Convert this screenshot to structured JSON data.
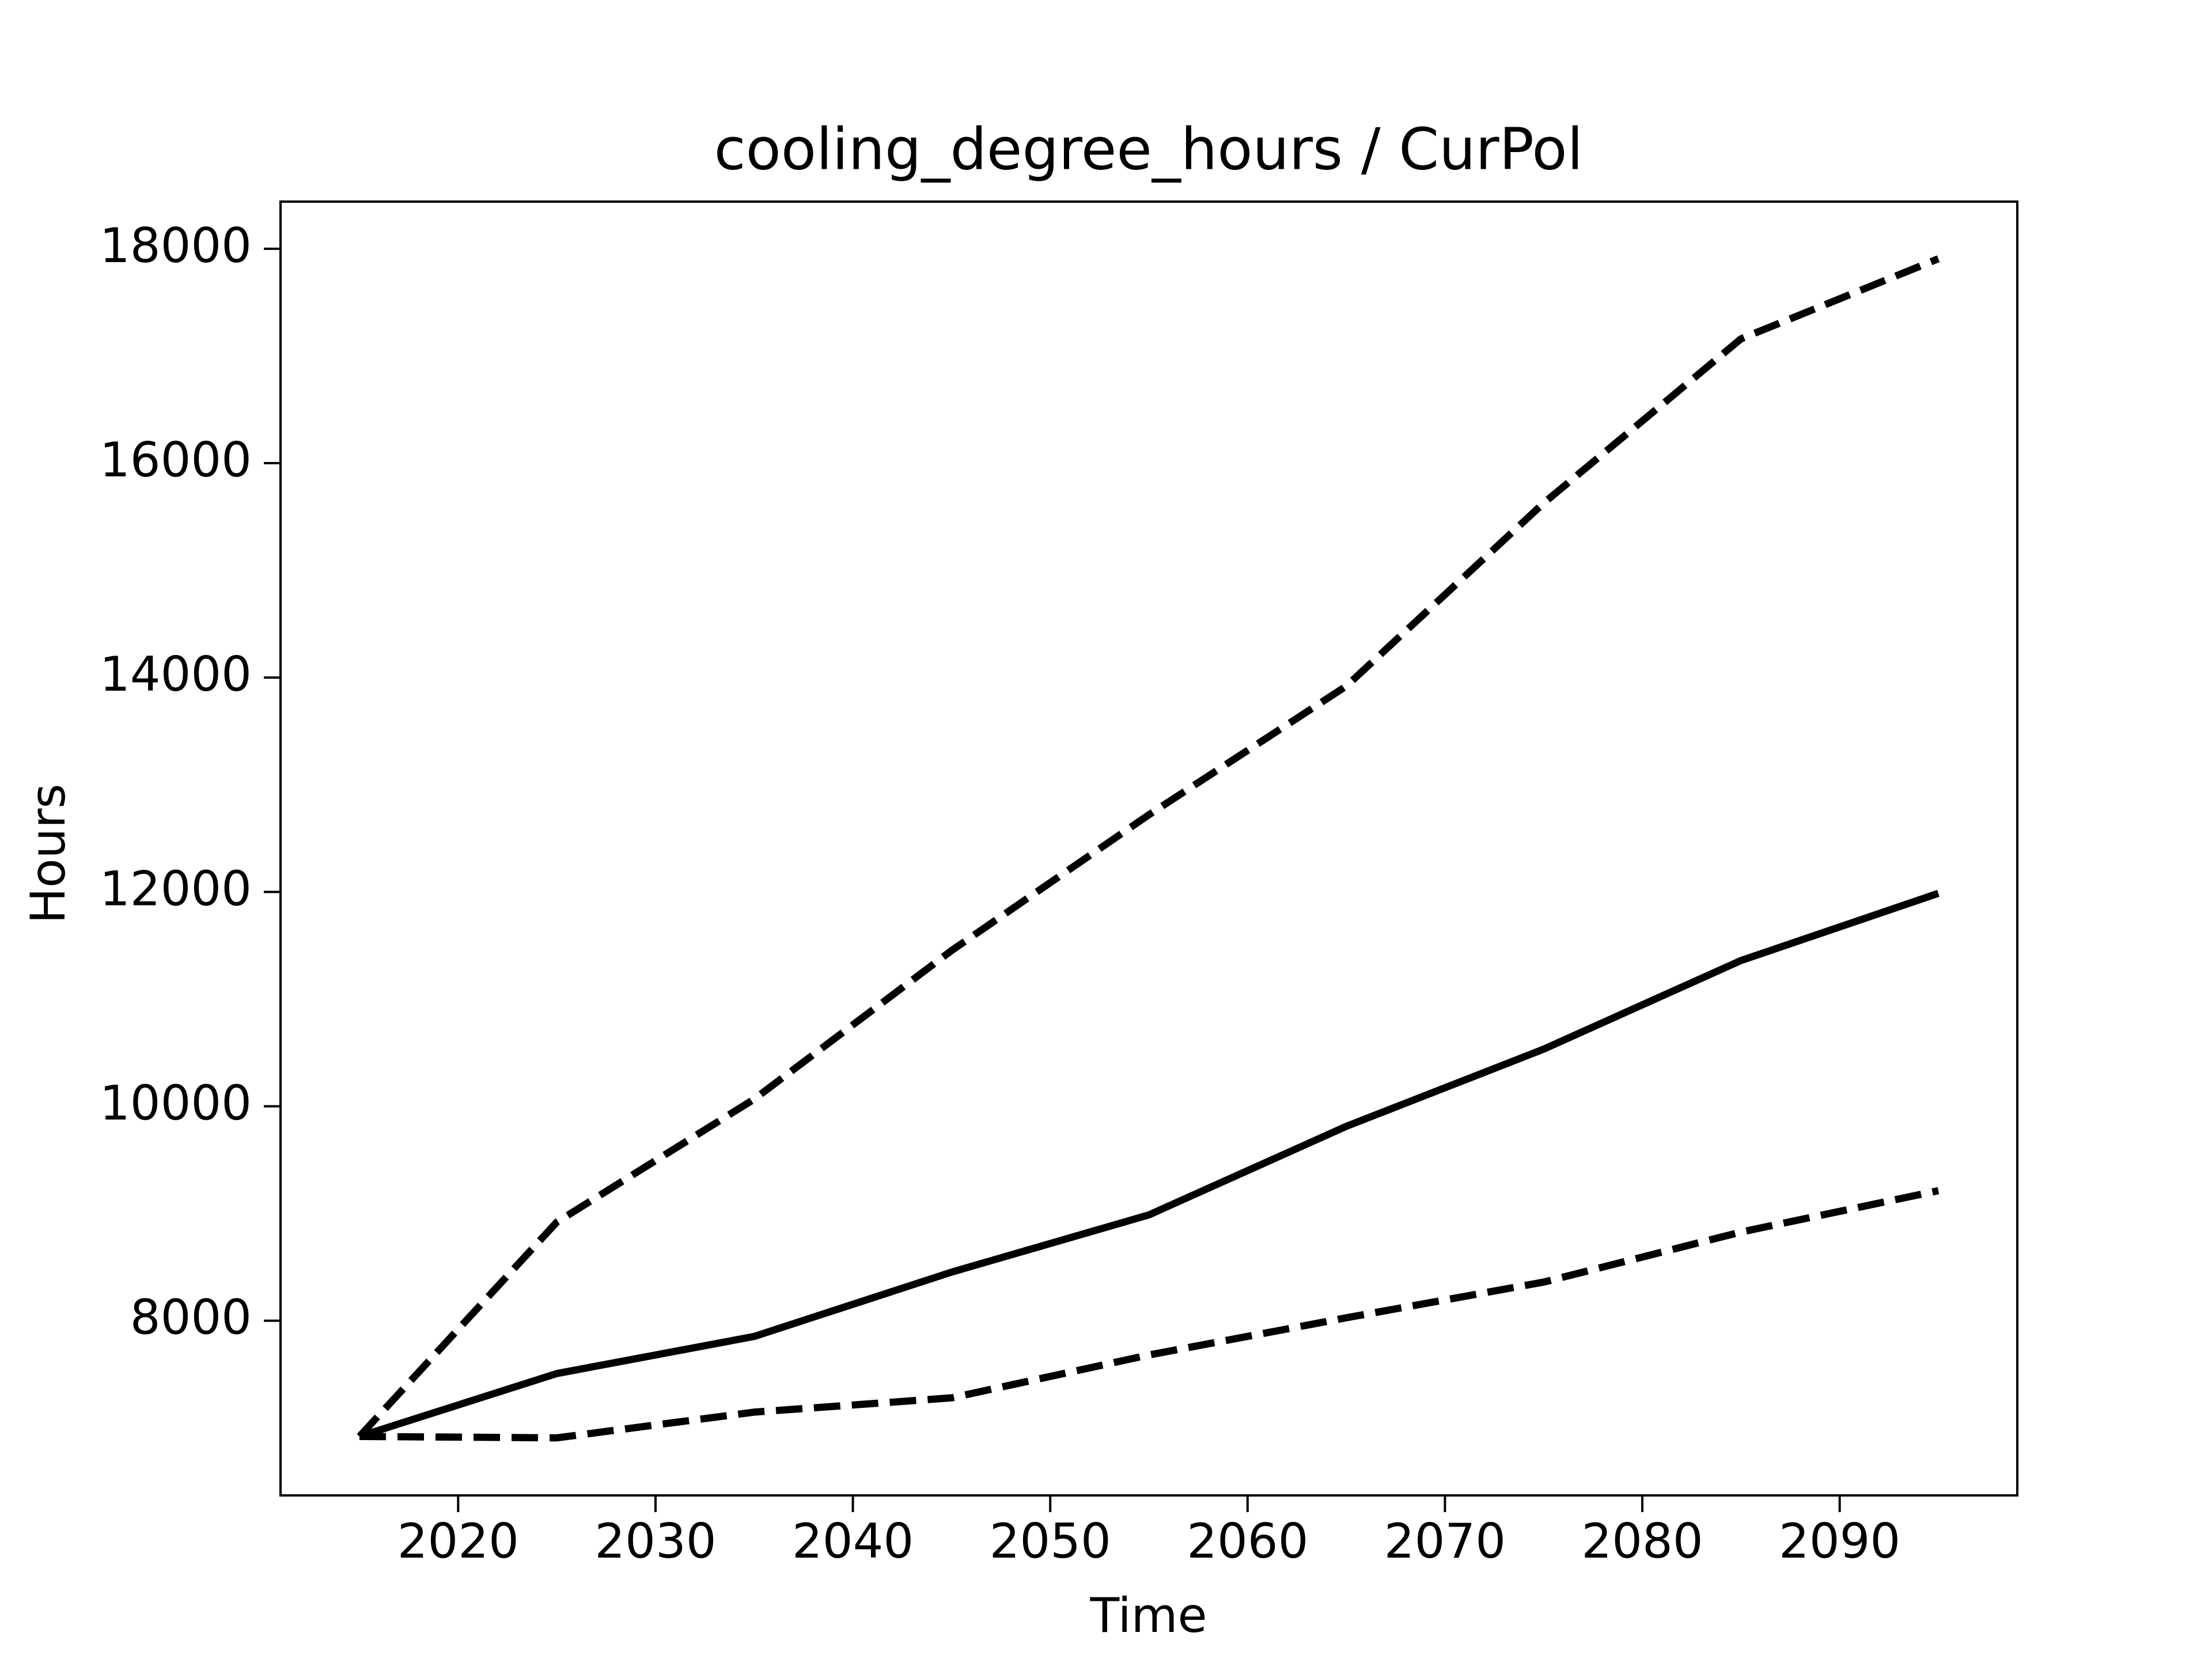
{
  "chart_data": {
    "type": "line",
    "title": "cooling_degree_hours / CurPol",
    "x_label": "Time",
    "y_label": "Hours",
    "x": [
      2015,
      2025,
      2035,
      2045,
      2055,
      2065,
      2075,
      2085,
      2095
    ],
    "series": [
      {
        "color": "#000000",
        "dashed": false,
        "values": [
          6920,
          7507,
          7853,
          8453,
          8987,
          9813,
          10533,
          11360,
          11987
        ]
      },
      {
        "color": "#000000",
        "dashed": true,
        "values": [
          6920,
          8920,
          10067,
          11453,
          12720,
          13920,
          15627,
          17160,
          17907
        ]
      },
      {
        "color": "#000000",
        "dashed": true,
        "values": [
          6920,
          6907,
          7147,
          7280,
          7680,
          8027,
          8360,
          8827,
          9213
        ]
      }
    ],
    "xlim": [
      2011,
      2099
    ],
    "ylim": [
      6370,
      18440
    ],
    "xticks": [
      2020,
      2030,
      2040,
      2050,
      2060,
      2070,
      2080,
      2090
    ],
    "yticks": [
      8000,
      10000,
      12000,
      14000,
      16000,
      18000
    ],
    "grid": false
  }
}
